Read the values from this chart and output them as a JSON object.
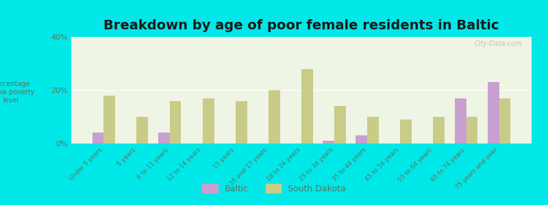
{
  "title": "Breakdown by age of poor female residents in Baltic",
  "ylabel": "percentage\nbelow poverty\nlevel",
  "categories": [
    "Under 5 years",
    "5 years",
    "6 to 11 years",
    "12 to 14 years",
    "15 years",
    "16 and 17 years",
    "18 to 24 years",
    "25 to 34 years",
    "35 to 44 years",
    "45 to 54 years",
    "55 to 64 years",
    "65 to 74 years",
    "75 years and over"
  ],
  "baltic": [
    4.0,
    0.0,
    4.0,
    0.0,
    0.0,
    0.0,
    0.0,
    1.0,
    3.0,
    0.0,
    0.0,
    17.0,
    23.0
  ],
  "south_dakota": [
    18.0,
    10.0,
    16.0,
    17.0,
    16.0,
    20.0,
    28.0,
    14.0,
    10.0,
    9.0,
    10.0,
    10.0,
    17.0
  ],
  "baltic_color": "#c8a0d0",
  "sd_color": "#c8cc88",
  "plot_bg": "#eef5e4",
  "outer_bg": "#00e8e8",
  "ylim": [
    0,
    40
  ],
  "yticks": [
    0,
    20,
    40
  ],
  "ytick_labels": [
    "0%",
    "20%",
    "40%"
  ],
  "legend_baltic": "Baltic",
  "legend_sd": "South Dakota",
  "title_fontsize": 14,
  "bar_width": 0.35,
  "tick_label_color": "#607060",
  "ylabel_color": "#607060"
}
